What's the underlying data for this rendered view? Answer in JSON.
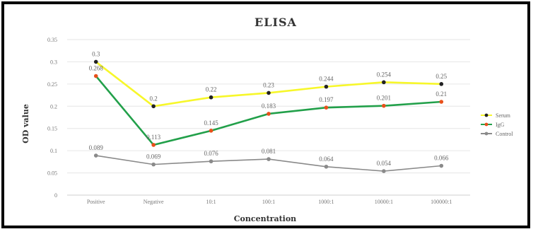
{
  "chart_data": {
    "type": "line",
    "title": "ELISA",
    "xlabel": "Concentration",
    "ylabel": "OD value",
    "categories": [
      "Positive",
      "Negative",
      "10:1",
      "100:1",
      "1000:1",
      "10000:1",
      "100000:1"
    ],
    "ylim": [
      0,
      0.35
    ],
    "yticks": [
      "0",
      "0.05",
      "0.1",
      "0.15",
      "0.2",
      "0.25",
      "0.3",
      "0.35"
    ],
    "grid": true,
    "legend_position": "right",
    "series": [
      {
        "name": "Serum",
        "color": "#f7f72a",
        "marker_color": "#222222",
        "values": [
          0.3,
          0.2,
          0.22,
          0.23,
          0.244,
          0.254,
          0.25
        ],
        "labels": [
          "0.3",
          "0.2",
          "0.22",
          "0.23",
          "0.244",
          "0.254",
          "0.25"
        ]
      },
      {
        "name": "IgG",
        "color": "#22a04a",
        "marker_color": "#e8501a",
        "values": [
          0.268,
          0.113,
          0.145,
          0.183,
          0.197,
          0.201,
          0.21
        ],
        "labels": [
          "0.268",
          "0.113",
          "0.145",
          "0.183",
          "0.197",
          "0.201",
          "0.21"
        ]
      },
      {
        "name": "Control",
        "color": "#8a8a8a",
        "marker_color": "#8a8a8a",
        "values": [
          0.089,
          0.069,
          0.076,
          0.081,
          0.064,
          0.054,
          0.066
        ],
        "labels": [
          "0.089",
          "0.069",
          "0.076",
          "0.081",
          "0.064",
          "0.054",
          "0.066"
        ]
      }
    ]
  }
}
